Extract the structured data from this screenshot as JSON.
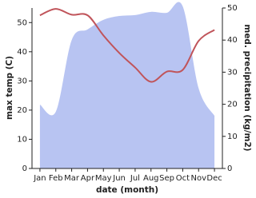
{
  "chart_data": {
    "type": "line-area",
    "xlabel": "date (month)",
    "ylabel": "max temp (C)",
    "y2label": "med. precipitation (kg/m2)",
    "categories": [
      "Jan",
      "Feb",
      "Mar",
      "Apr",
      "May",
      "Jun",
      "Jul",
      "Aug",
      "Sep",
      "Oct",
      "Nov",
      "Dec"
    ],
    "series": [
      {
        "kind": "area",
        "axis": "y2",
        "color": "#b8c4f2",
        "values": [
          19.9,
          17.7,
          40,
          43.3,
          46.3,
          47.5,
          47.8,
          48.8,
          48.5,
          50.5,
          25,
          16.4
        ]
      },
      {
        "kind": "line",
        "color": "#c0545a",
        "values": [
          52.5,
          54.7,
          52.7,
          52.5,
          45.6,
          39.6,
          34.6,
          29.7,
          33.2,
          33.8,
          43.7,
          47.5
        ]
      }
    ],
    "ylim": [
      0,
      55
    ],
    "yticks": [
      0,
      10,
      20,
      30,
      40,
      50
    ],
    "y2lim": [
      0,
      50
    ],
    "y2ticks": [
      0,
      10,
      20,
      30,
      40,
      50
    ],
    "grid": false
  }
}
